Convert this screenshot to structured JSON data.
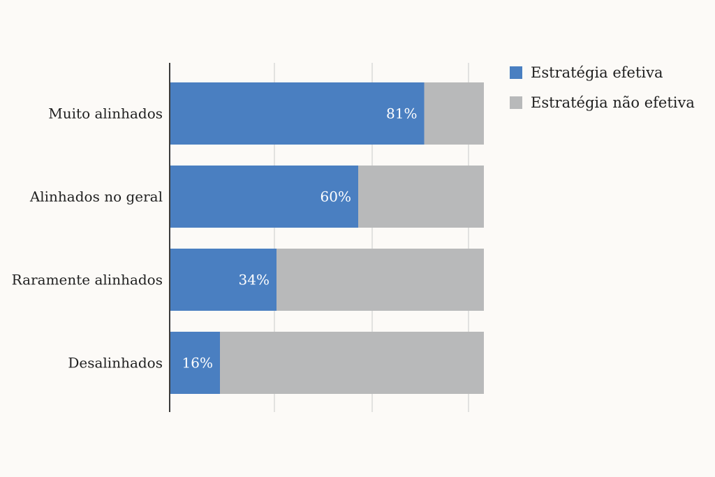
{
  "chart_data": {
    "type": "bar",
    "orientation": "horizontal",
    "stacked": true,
    "categories": [
      "Muito alinhados",
      "Alinhados no geral",
      "Raramente alinhados",
      "Desalinhados"
    ],
    "series": [
      {
        "name": "Estratégia efetiva",
        "values": [
          81,
          60,
          34,
          16
        ],
        "labels": [
          "81%",
          "60%",
          "34%",
          "16%"
        ],
        "color": "#4a7fc1"
      },
      {
        "name": "Estratégia não efetiva",
        "values": [
          19,
          40,
          66,
          84
        ],
        "color": "#b8b9ba"
      }
    ],
    "xlim": [
      0,
      100
    ],
    "grid": true,
    "legend_position": "top-right",
    "title": "",
    "xlabel": "",
    "ylabel": ""
  }
}
